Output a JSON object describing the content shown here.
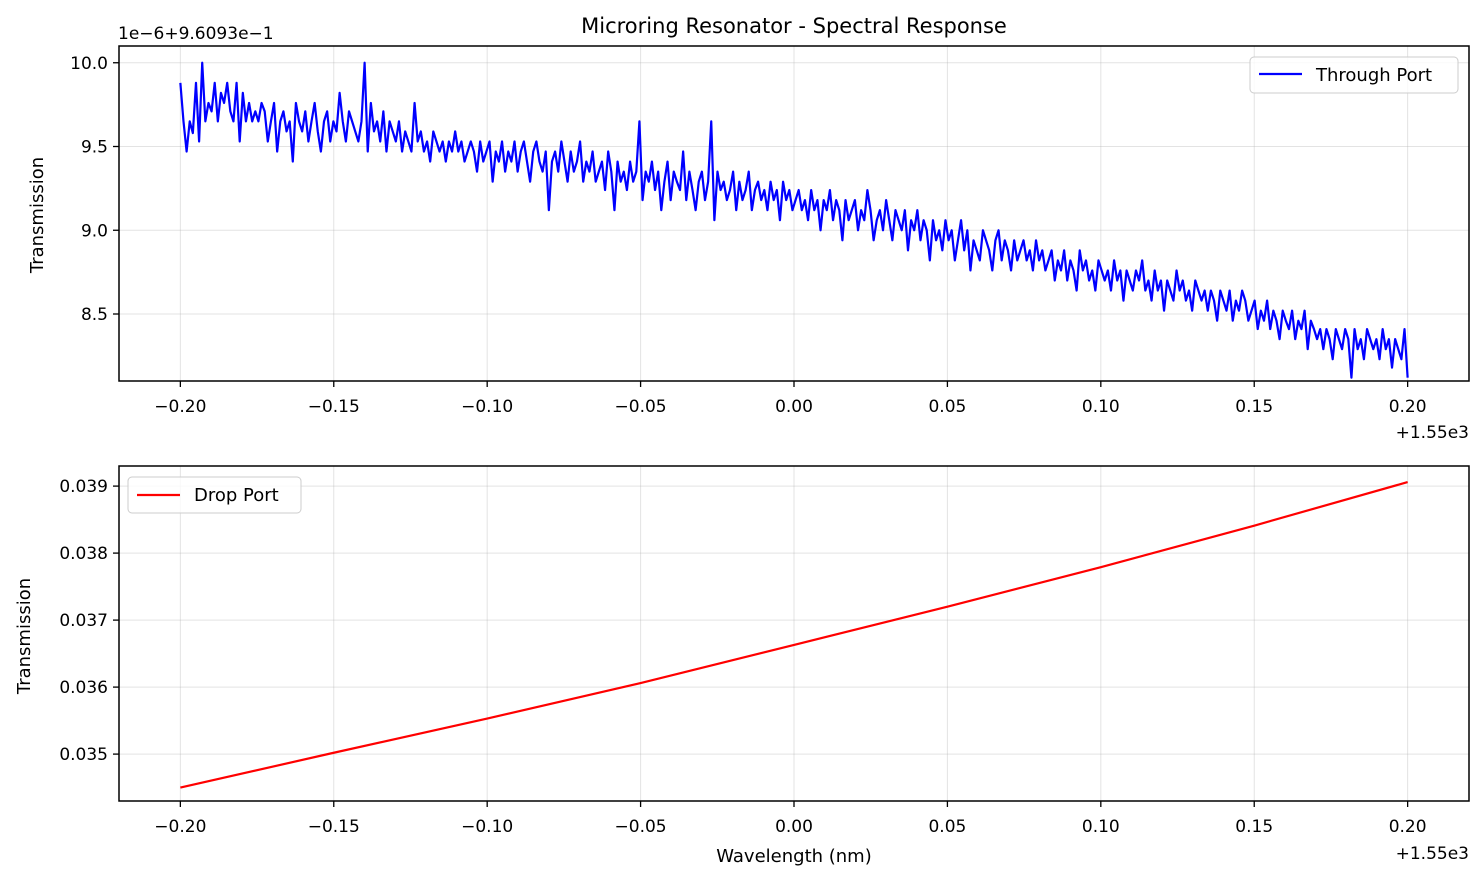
{
  "chart_data": [
    {
      "type": "line",
      "title": "Microring Resonator - Spectral Response",
      "xlabel": "",
      "ylabel": "Transmission",
      "x_offset_label": "+1.55e3",
      "y_offset_label": "1e−6+9.6093e−1",
      "xlim": [
        -0.22,
        0.22
      ],
      "ylim": [
        8.1,
        10.1
      ],
      "xticks": [
        -0.2,
        -0.15,
        -0.1,
        -0.05,
        0.0,
        0.05,
        0.1,
        0.15,
        0.2
      ],
      "xtick_labels": [
        "−0.20",
        "−0.15",
        "−0.10",
        "−0.05",
        "0.00",
        "0.05",
        "0.10",
        "0.15",
        "0.20"
      ],
      "yticks": [
        8.5,
        9.0,
        9.5,
        10.0
      ],
      "ytick_labels": [
        "8.5",
        "9.0",
        "9.5",
        "10.0"
      ],
      "grid": true,
      "legend": "upper right",
      "series": [
        {
          "name": "Through Port",
          "color": "#0000ff",
          "x_start": -0.2,
          "x_end": 0.2,
          "values": [
            9.88,
            9.65,
            9.47,
            9.65,
            9.58,
            9.88,
            9.53,
            10.0,
            9.65,
            9.76,
            9.71,
            9.88,
            9.65,
            9.82,
            9.76,
            9.88,
            9.71,
            9.65,
            9.88,
            9.53,
            9.82,
            9.65,
            9.76,
            9.65,
            9.71,
            9.65,
            9.76,
            9.71,
            9.53,
            9.65,
            9.76,
            9.47,
            9.65,
            9.71,
            9.59,
            9.65,
            9.41,
            9.76,
            9.65,
            9.59,
            9.71,
            9.53,
            9.65,
            9.76,
            9.59,
            9.47,
            9.65,
            9.71,
            9.53,
            9.65,
            9.59,
            9.82,
            9.65,
            9.53,
            9.71,
            9.65,
            9.59,
            9.53,
            9.65,
            10.0,
            9.47,
            9.76,
            9.59,
            9.65,
            9.53,
            9.71,
            9.47,
            9.65,
            9.59,
            9.53,
            9.65,
            9.47,
            9.59,
            9.53,
            9.47,
            9.76,
            9.53,
            9.59,
            9.47,
            9.53,
            9.41,
            9.59,
            9.53,
            9.47,
            9.53,
            9.41,
            9.53,
            9.47,
            9.59,
            9.47,
            9.53,
            9.41,
            9.47,
            9.53,
            9.47,
            9.35,
            9.53,
            9.41,
            9.47,
            9.53,
            9.29,
            9.47,
            9.41,
            9.53,
            9.35,
            9.47,
            9.41,
            9.53,
            9.35,
            9.47,
            9.53,
            9.41,
            9.29,
            9.47,
            9.53,
            9.41,
            9.35,
            9.47,
            9.12,
            9.41,
            9.47,
            9.35,
            9.53,
            9.41,
            9.29,
            9.47,
            9.35,
            9.41,
            9.53,
            9.29,
            9.41,
            9.35,
            9.47,
            9.29,
            9.35,
            9.41,
            9.24,
            9.47,
            9.35,
            9.12,
            9.41,
            9.29,
            9.35,
            9.24,
            9.41,
            9.29,
            9.35,
            9.65,
            9.18,
            9.35,
            9.29,
            9.41,
            9.24,
            9.35,
            9.12,
            9.29,
            9.41,
            9.18,
            9.35,
            9.29,
            9.24,
            9.47,
            9.18,
            9.35,
            9.24,
            9.12,
            9.29,
            9.35,
            9.18,
            9.29,
            9.65,
            9.06,
            9.35,
            9.24,
            9.29,
            9.18,
            9.24,
            9.35,
            9.12,
            9.29,
            9.18,
            9.24,
            9.35,
            9.12,
            9.24,
            9.29,
            9.18,
            9.24,
            9.12,
            9.29,
            9.18,
            9.24,
            9.06,
            9.29,
            9.18,
            9.24,
            9.12,
            9.18,
            9.24,
            9.12,
            9.18,
            9.06,
            9.24,
            9.12,
            9.18,
            9.0,
            9.18,
            9.12,
            9.24,
            9.06,
            9.18,
            9.12,
            8.94,
            9.18,
            9.06,
            9.12,
            9.18,
            9.0,
            9.12,
            9.06,
            9.24,
            9.12,
            8.94,
            9.06,
            9.12,
            9.0,
            9.18,
            9.06,
            8.94,
            9.12,
            9.06,
            9.0,
            9.12,
            8.88,
            9.06,
            9.0,
            9.12,
            8.94,
            9.06,
            9.0,
            8.82,
            9.06,
            8.94,
            9.0,
            8.88,
            9.06,
            8.94,
            9.0,
            8.82,
            8.94,
            9.06,
            8.88,
            9.0,
            8.76,
            8.94,
            8.88,
            8.82,
            9.0,
            8.94,
            8.88,
            8.76,
            8.94,
            9.0,
            8.82,
            8.94,
            8.88,
            8.76,
            8.94,
            8.82,
            8.88,
            8.94,
            8.82,
            8.88,
            8.76,
            8.94,
            8.82,
            8.88,
            8.76,
            8.82,
            8.88,
            8.7,
            8.82,
            8.76,
            8.88,
            8.7,
            8.82,
            8.76,
            8.64,
            8.88,
            8.76,
            8.82,
            8.7,
            8.76,
            8.64,
            8.82,
            8.76,
            8.7,
            8.76,
            8.64,
            8.82,
            8.7,
            8.76,
            8.58,
            8.76,
            8.7,
            8.64,
            8.76,
            8.7,
            8.82,
            8.64,
            8.7,
            8.58,
            8.76,
            8.64,
            8.7,
            8.52,
            8.7,
            8.64,
            8.58,
            8.76,
            8.64,
            8.7,
            8.58,
            8.64,
            8.52,
            8.7,
            8.64,
            8.58,
            8.64,
            8.52,
            8.64,
            8.58,
            8.46,
            8.64,
            8.58,
            8.52,
            8.64,
            8.46,
            8.58,
            8.52,
            8.64,
            8.58,
            8.46,
            8.52,
            8.58,
            8.41,
            8.52,
            8.46,
            8.58,
            8.41,
            8.52,
            8.46,
            8.35,
            8.52,
            8.46,
            8.41,
            8.52,
            8.35,
            8.46,
            8.41,
            8.52,
            8.29,
            8.46,
            8.41,
            8.35,
            8.41,
            8.29,
            8.41,
            8.35,
            8.23,
            8.41,
            8.35,
            8.29,
            8.41,
            8.35,
            8.12,
            8.41,
            8.29,
            8.35,
            8.23,
            8.41,
            8.35,
            8.29,
            8.35,
            8.23,
            8.41,
            8.29,
            8.35,
            8.18,
            8.35,
            8.29,
            8.23,
            8.41,
            8.12
          ]
        }
      ]
    },
    {
      "type": "line",
      "title": "",
      "xlabel": "Wavelength (nm)",
      "ylabel": "Transmission",
      "x_offset_label": "+1.55e3",
      "xlim": [
        -0.22,
        0.22
      ],
      "ylim": [
        0.0343,
        0.0393
      ],
      "xticks": [
        -0.2,
        -0.15,
        -0.1,
        -0.05,
        0.0,
        0.05,
        0.1,
        0.15,
        0.2
      ],
      "xtick_labels": [
        "−0.20",
        "−0.15",
        "−0.10",
        "−0.05",
        "0.00",
        "0.05",
        "0.10",
        "0.15",
        "0.20"
      ],
      "yticks": [
        0.035,
        0.036,
        0.037,
        0.038,
        0.039
      ],
      "ytick_labels": [
        "0.035",
        "0.036",
        "0.037",
        "0.038",
        "0.039"
      ],
      "grid": true,
      "legend": "upper left",
      "series": [
        {
          "name": "Drop Port",
          "color": "#ff0000",
          "x": [
            -0.2,
            -0.15,
            -0.1,
            -0.05,
            0.0,
            0.05,
            0.1,
            0.15,
            0.2
          ],
          "values": [
            0.0345,
            0.03502,
            0.03553,
            0.03606,
            0.03663,
            0.0372,
            0.03779,
            0.03841,
            0.03906
          ]
        }
      ]
    }
  ]
}
